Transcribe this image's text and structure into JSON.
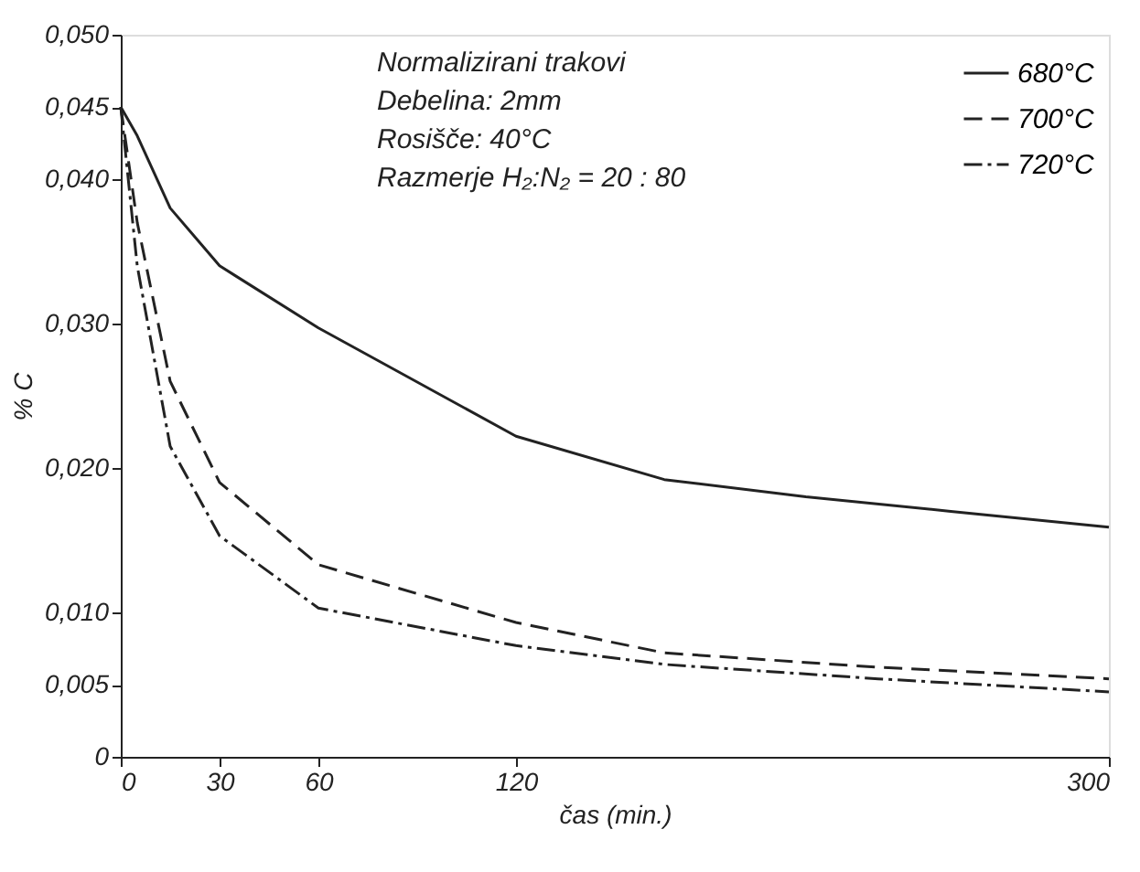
{
  "chart_data": {
    "type": "line",
    "xlabel": "čas (min.)",
    "ylabel": "% C",
    "annotations": [
      "Normalizirani trakovi",
      "Debelina: 2mm",
      "Rosišče: 40°C",
      "Razmerje H₂:N₂ = 20 : 80"
    ],
    "series": [
      {
        "name": "680°C",
        "color": "#222222",
        "line_style": "solid",
        "x": [
          0,
          5,
          15,
          30,
          60,
          120,
          165,
          208,
          252,
          300
        ],
        "values": [
          0.045,
          0.043,
          0.038,
          0.034,
          0.0297,
          0.0222,
          0.0192,
          0.018,
          0.017,
          0.0159
        ]
      },
      {
        "name": "700°C",
        "color": "#222222",
        "line_style": "dashed",
        "x": [
          0,
          5,
          15,
          30,
          60,
          120,
          165,
          230,
          300
        ],
        "values": [
          0.045,
          0.037,
          0.026,
          0.019,
          0.0133,
          0.0093,
          0.0072,
          0.0062,
          0.0054
        ]
      },
      {
        "name": "720°C",
        "color": "#222222",
        "line_style": "dotted",
        "x": [
          0,
          5,
          15,
          30,
          60,
          120,
          165,
          230,
          300
        ],
        "values": [
          0.045,
          0.034,
          0.0215,
          0.0153,
          0.0103,
          0.0077,
          0.0064,
          0.0054,
          0.0045
        ]
      }
    ],
    "xlim": [
      0,
      300
    ],
    "xticks": [
      0,
      30,
      60,
      120,
      300
    ],
    "ylim": [
      0,
      0.05
    ],
    "yticks": [
      {
        "value": 0,
        "label": "0"
      },
      {
        "value": 0.005,
        "label": "0,005"
      },
      {
        "value": 0.01,
        "label": "0,010"
      },
      {
        "value": 0.02,
        "label": "0,020"
      },
      {
        "value": 0.03,
        "label": "0,030"
      },
      {
        "value": 0.04,
        "label": "0,040"
      },
      {
        "value": 0.045,
        "label": "0,045"
      },
      {
        "value": 0.05,
        "label": "0,050"
      }
    ],
    "grid": false,
    "legend": "top right",
    "marker": "none"
  }
}
